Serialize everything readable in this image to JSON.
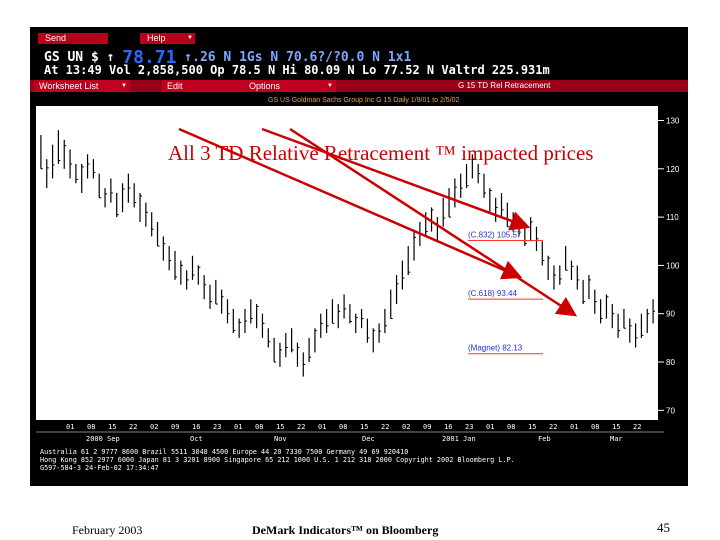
{
  "terminal": {
    "menu": [
      {
        "label": "Send"
      },
      {
        "label": "Help"
      }
    ],
    "quote": {
      "security": "GS",
      "line1_pre": "UN $ ↑",
      "last_price": "78.71",
      "line1_post": "↑.26  N 1Gs   N 70.6?/?0.0  N  1x1",
      "line2": "At 13:49 Vol 2,858,500 Op 78.5 N Hi 80.09 N Lo 77.52 N Valtrd 225.931m"
    },
    "toolbar": {
      "buttons": [
        {
          "label": "Worksheet List"
        },
        {
          "label": "Edit"
        },
        {
          "label": "Options"
        }
      ],
      "title": "G 15   TD Rel Retracement"
    },
    "chart_subtitle": "GS US Goldman Sachs Group Inc G 15 Daily 1/9/01 to 2/5/02",
    "time_row": [
      "01",
      "08",
      "15",
      "22",
      "02",
      "09",
      "16",
      "23",
      "01",
      "08",
      "15",
      "22",
      "01",
      "08",
      "15",
      "22",
      "02",
      "09",
      "16",
      "23",
      "01",
      "08",
      "15",
      "22",
      "01",
      "08",
      "15",
      "22"
    ],
    "month_row": [
      "2000 Sep",
      "Oct",
      "Nov",
      "Dec",
      "2001 Jan",
      "Feb",
      "Mar"
    ],
    "bottom_lines": [
      "Australia 61 2 9777 8600    Brazil 5511 3048 4500    Europe 44 20 7330 7500    Germany 49 69 920410",
      "Hong Kong 852 2977 6000 Japan 81 3 3201 8900 Singapore 65 212 1000 U.S. 1 212 318 2000  Copyright 2002 Bloomberg L.P.",
      "                                                                         G597-584-3 24-Feb-02 17:34:47"
    ]
  },
  "annotation": "All 3 TD Relative Retracement ™ impacted prices",
  "chart_data": {
    "type": "bar",
    "title": "TD Relative Retracement",
    "subtitle": "GS US Goldman Sachs Group Inc G 15 Daily 1/9/01 to 2/5/02",
    "ylabel": "",
    "ylim": [
      68,
      133
    ],
    "yticks": [
      70,
      80,
      90,
      100,
      110,
      120,
      130
    ],
    "series": [
      {
        "name": "",
        "ohlc_hl": [
          [
            120,
            127
          ],
          [
            116,
            122
          ],
          [
            118,
            125
          ],
          [
            121,
            128
          ],
          [
            120,
            126
          ],
          [
            118,
            124
          ],
          [
            117,
            121
          ],
          [
            115,
            121
          ],
          [
            118,
            123
          ],
          [
            118,
            122
          ],
          [
            114,
            119
          ],
          [
            112,
            116
          ],
          [
            113,
            118
          ],
          [
            110,
            115
          ],
          [
            111,
            117
          ],
          [
            113,
            119
          ],
          [
            112,
            117
          ],
          [
            109,
            115
          ],
          [
            108,
            113
          ],
          [
            106,
            111
          ],
          [
            104,
            109
          ],
          [
            101,
            106
          ],
          [
            99,
            104
          ],
          [
            97,
            103
          ],
          [
            96,
            101
          ],
          [
            95,
            99
          ],
          [
            97,
            102
          ],
          [
            96,
            100
          ],
          [
            93,
            98
          ],
          [
            91,
            96
          ],
          [
            92,
            97
          ],
          [
            90,
            95
          ],
          [
            88,
            93
          ],
          [
            86,
            91
          ],
          [
            85,
            89
          ],
          [
            86,
            91
          ],
          [
            88,
            93
          ],
          [
            87,
            92
          ],
          [
            85,
            90
          ],
          [
            83,
            87
          ],
          [
            80,
            85
          ],
          [
            79,
            84
          ],
          [
            81,
            86
          ],
          [
            82,
            87
          ],
          [
            79,
            84
          ],
          [
            77,
            82
          ],
          [
            80,
            85
          ],
          [
            82,
            87
          ],
          [
            85,
            90
          ],
          [
            86,
            91
          ],
          [
            88,
            93
          ],
          [
            87,
            92
          ],
          [
            89,
            94
          ],
          [
            88,
            92
          ],
          [
            86,
            90
          ],
          [
            87,
            91
          ],
          [
            84,
            89
          ],
          [
            82,
            87
          ],
          [
            84,
            88
          ],
          [
            86,
            91
          ],
          [
            89,
            95
          ],
          [
            92,
            98
          ],
          [
            95,
            101
          ],
          [
            98,
            104
          ],
          [
            101,
            107
          ],
          [
            104,
            109
          ],
          [
            106,
            111
          ],
          [
            107,
            112
          ],
          [
            105,
            110
          ],
          [
            108,
            114
          ],
          [
            110,
            116
          ],
          [
            112,
            118
          ],
          [
            114,
            119
          ],
          [
            116,
            121
          ],
          [
            118,
            123
          ],
          [
            117,
            121
          ],
          [
            114,
            119
          ],
          [
            111,
            116
          ],
          [
            109,
            114
          ],
          [
            110,
            115
          ],
          [
            108,
            113
          ],
          [
            107,
            111
          ],
          [
            106,
            110
          ],
          [
            104,
            109
          ],
          [
            105,
            110
          ],
          [
            103,
            108
          ],
          [
            100,
            105
          ],
          [
            97,
            102
          ],
          [
            95,
            100
          ],
          [
            96,
            100
          ],
          [
            99,
            104
          ],
          [
            97,
            101
          ],
          [
            95,
            100
          ],
          [
            92,
            97
          ],
          [
            93,
            98
          ],
          [
            90,
            95
          ],
          [
            88,
            93
          ],
          [
            89,
            94
          ],
          [
            87,
            92
          ],
          [
            85,
            90
          ],
          [
            87,
            91
          ],
          [
            84,
            89
          ],
          [
            83,
            88
          ],
          [
            85,
            90
          ],
          [
            86,
            91
          ],
          [
            88,
            93
          ]
        ]
      }
    ],
    "levels": [
      {
        "label": "(C.832) 105.57",
        "value": 105.57
      },
      {
        "label": "(C.618) 93.44",
        "value": 93.44
      },
      {
        "label": "(Magnet) 82.13",
        "value": 82.13
      }
    ]
  },
  "footer": {
    "date": "February 2003",
    "title": "DeMark Indicators™ on Bloomberg",
    "page": "45"
  },
  "colors": {
    "terminal_bg": "#000000",
    "menu_red": "#b8001a",
    "price_blue": "#2a66ff",
    "chart_bg": "#ffffff",
    "bar": "#000000",
    "levels_text": "#2233cc",
    "annotation": "#cc0000"
  }
}
